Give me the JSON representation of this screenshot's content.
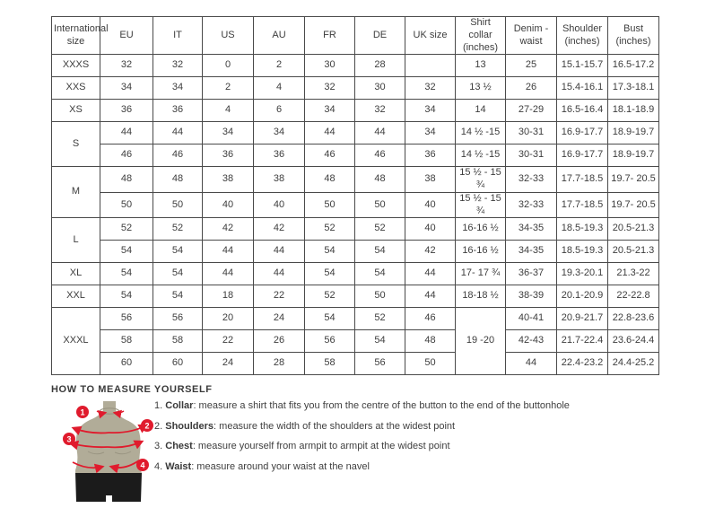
{
  "table": {
    "headers": [
      "International size",
      "EU",
      "IT",
      "US",
      "AU",
      "FR",
      "DE",
      "UK size",
      "Shirt collar (inches)",
      "Denim - waist",
      "Shoulder (inches)",
      "Bust (inches)"
    ],
    "rows": [
      [
        {
          "t": "XXXS"
        },
        {
          "t": "32"
        },
        {
          "t": "32"
        },
        {
          "t": "0"
        },
        {
          "t": "2"
        },
        {
          "t": "30"
        },
        {
          "t": "28"
        },
        {
          "t": ""
        },
        {
          "t": "13"
        },
        {
          "t": "25"
        },
        {
          "t": "15.1-15.7"
        },
        {
          "t": "16.5-17.2"
        }
      ],
      [
        {
          "t": "XXS"
        },
        {
          "t": "34"
        },
        {
          "t": "34"
        },
        {
          "t": "2"
        },
        {
          "t": "4"
        },
        {
          "t": "32"
        },
        {
          "t": "30"
        },
        {
          "t": "32"
        },
        {
          "t": "13 ½"
        },
        {
          "t": "26"
        },
        {
          "t": "15.4-16.1"
        },
        {
          "t": "17.3-18.1"
        }
      ],
      [
        {
          "t": "XS"
        },
        {
          "t": "36"
        },
        {
          "t": "36"
        },
        {
          "t": "4"
        },
        {
          "t": "6"
        },
        {
          "t": "34"
        },
        {
          "t": "32"
        },
        {
          "t": "34"
        },
        {
          "t": "14"
        },
        {
          "t": "27-29"
        },
        {
          "t": "16.5-16.4"
        },
        {
          "t": "18.1-18.9"
        }
      ],
      [
        {
          "t": "S",
          "rs": 2
        },
        {
          "t": "44"
        },
        {
          "t": "44"
        },
        {
          "t": "34"
        },
        {
          "t": "34"
        },
        {
          "t": "44"
        },
        {
          "t": "44"
        },
        {
          "t": "34"
        },
        {
          "t": "14 ½ -15"
        },
        {
          "t": "30-31"
        },
        {
          "t": "16.9-17.7"
        },
        {
          "t": "18.9-19.7"
        }
      ],
      [
        null,
        {
          "t": "46"
        },
        {
          "t": "46"
        },
        {
          "t": "36"
        },
        {
          "t": "36"
        },
        {
          "t": "46"
        },
        {
          "t": "46"
        },
        {
          "t": "36"
        },
        {
          "t": "14 ½ -15"
        },
        {
          "t": "30-31"
        },
        {
          "t": "16.9-17.7"
        },
        {
          "t": "18.9-19.7"
        }
      ],
      [
        {
          "t": "M",
          "rs": 2
        },
        {
          "t": "48"
        },
        {
          "t": "48"
        },
        {
          "t": "38"
        },
        {
          "t": "38"
        },
        {
          "t": "48"
        },
        {
          "t": "48"
        },
        {
          "t": "38"
        },
        {
          "t": "15 ½ - 15 ¾"
        },
        {
          "t": "32-33"
        },
        {
          "t": "17.7-18.5"
        },
        {
          "t": "19.7- 20.5"
        }
      ],
      [
        null,
        {
          "t": "50"
        },
        {
          "t": "50"
        },
        {
          "t": "40"
        },
        {
          "t": "40"
        },
        {
          "t": "50"
        },
        {
          "t": "50"
        },
        {
          "t": "40"
        },
        {
          "t": "15 ½ - 15 ¾"
        },
        {
          "t": "32-33"
        },
        {
          "t": "17.7-18.5"
        },
        {
          "t": "19.7- 20.5"
        }
      ],
      [
        {
          "t": "L",
          "rs": 2
        },
        {
          "t": "52"
        },
        {
          "t": "52"
        },
        {
          "t": "42"
        },
        {
          "t": "42"
        },
        {
          "t": "52"
        },
        {
          "t": "52"
        },
        {
          "t": "40"
        },
        {
          "t": "16-16 ½"
        },
        {
          "t": "34-35"
        },
        {
          "t": "18.5-19.3"
        },
        {
          "t": "20.5-21.3"
        }
      ],
      [
        null,
        {
          "t": "54"
        },
        {
          "t": "54"
        },
        {
          "t": "44"
        },
        {
          "t": "44"
        },
        {
          "t": "54"
        },
        {
          "t": "54"
        },
        {
          "t": "42"
        },
        {
          "t": "16-16 ½"
        },
        {
          "t": "34-35"
        },
        {
          "t": "18.5-19.3"
        },
        {
          "t": "20.5-21.3"
        }
      ],
      [
        {
          "t": "XL"
        },
        {
          "t": "54"
        },
        {
          "t": "54"
        },
        {
          "t": "44"
        },
        {
          "t": "44"
        },
        {
          "t": "54"
        },
        {
          "t": "54"
        },
        {
          "t": "44"
        },
        {
          "t": "17- 17 ¾"
        },
        {
          "t": "36-37"
        },
        {
          "t": "19.3-20.1"
        },
        {
          "t": "21.3-22"
        }
      ],
      [
        {
          "t": "XXL"
        },
        {
          "t": "54"
        },
        {
          "t": "54"
        },
        {
          "t": "18"
        },
        {
          "t": "22"
        },
        {
          "t": "52"
        },
        {
          "t": "50"
        },
        {
          "t": "44"
        },
        {
          "t": "18-18 ½"
        },
        {
          "t": "38-39"
        },
        {
          "t": "20.1-20.9"
        },
        {
          "t": "22-22.8"
        }
      ],
      [
        {
          "t": "XXXL",
          "rs": 3
        },
        {
          "t": "56"
        },
        {
          "t": "56"
        },
        {
          "t": "20"
        },
        {
          "t": "24"
        },
        {
          "t": "54"
        },
        {
          "t": "52"
        },
        {
          "t": "46"
        },
        {
          "t": "19 -20",
          "rs": 3
        },
        {
          "t": "40-41"
        },
        {
          "t": "20.9-21.7"
        },
        {
          "t": "22.8-23.6"
        }
      ],
      [
        null,
        {
          "t": "58"
        },
        {
          "t": "58"
        },
        {
          "t": "22"
        },
        {
          "t": "26"
        },
        {
          "t": "56"
        },
        {
          "t": "54"
        },
        {
          "t": "48"
        },
        null,
        {
          "t": "42-43"
        },
        {
          "t": "21.7-22.4"
        },
        {
          "t": "23.6-24.4"
        }
      ],
      [
        null,
        {
          "t": "60"
        },
        {
          "t": "60"
        },
        {
          "t": "24"
        },
        {
          "t": "28"
        },
        {
          "t": "58"
        },
        {
          "t": "56"
        },
        {
          "t": "50"
        },
        null,
        {
          "t": "44"
        },
        {
          "t": "22.4-23.2"
        },
        {
          "t": "24.4-25.2"
        }
      ]
    ]
  },
  "measure": {
    "title": "HOW TO MEASURE YOURSELF",
    "steps": [
      {
        "num": "1.",
        "label": "Collar",
        "text": ": measure a shirt that fits you from the centre of the button to the end of the buttonhole"
      },
      {
        "num": "2.",
        "label": "Shoulders",
        "text": ": measure the width of the shoulders at the widest point"
      },
      {
        "num": "3.",
        "label": "Chest",
        "text": ": measure yourself from armpit to armpit at the widest point"
      },
      {
        "num": "4.",
        "label": "Waist",
        "text": ": measure around your waist at the navel"
      }
    ],
    "figure_markers": [
      "1",
      "2",
      "3",
      "4"
    ],
    "colors": {
      "accent_red": "#e01b2d",
      "torso": "#b1ac98",
      "torso_shadow": "#9a9582",
      "shorts": "#1b1b1b"
    }
  }
}
